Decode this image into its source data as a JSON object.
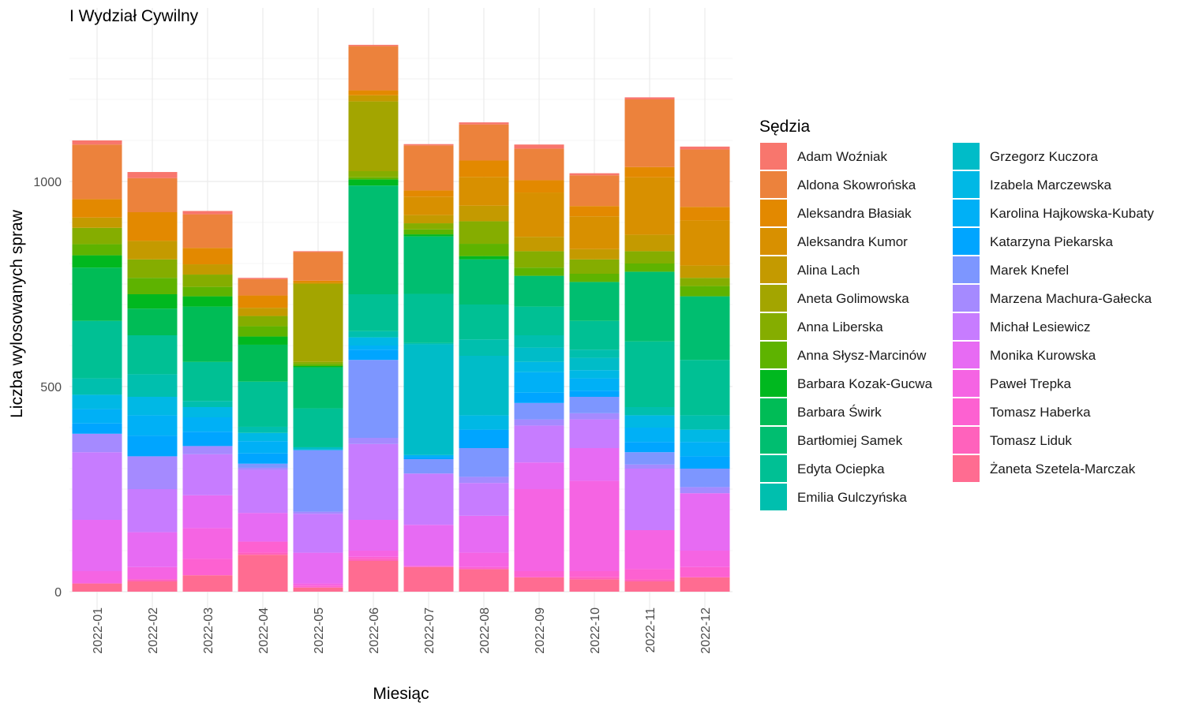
{
  "chart_data": {
    "type": "bar",
    "stacked": true,
    "title": "I Wydział Cywilny",
    "xlabel": "Miesiąc",
    "ylabel": "Liczba wylosowanych spraw",
    "ylim": [
      0,
      1350
    ],
    "yticks": [
      0,
      500,
      1000
    ],
    "grid": true,
    "legend": {
      "title": "Sędzia",
      "position": "right",
      "columns": 2
    },
    "categories": [
      "2022-01",
      "2022-02",
      "2022-03",
      "2022-04",
      "2022-05",
      "2022-06",
      "2022-07",
      "2022-08",
      "2022-09",
      "2022-10",
      "2022-11",
      "2022-12"
    ],
    "series": [
      {
        "name": "Adam Woźniak",
        "color": "#F8766D",
        "values": [
          10,
          15,
          8,
          3,
          2,
          3,
          3,
          5,
          10,
          5,
          5,
          7
        ]
      },
      {
        "name": "Aldona Skowrońska",
        "color": "#EC823C",
        "values": [
          133,
          83,
          82,
          40,
          70,
          108,
          110,
          88,
          77,
          75,
          165,
          140
        ]
      },
      {
        "name": "Aleksandra Błasiak",
        "color": "#E38900",
        "values": [
          45,
          70,
          40,
          30,
          5,
          12,
          15,
          40,
          30,
          25,
          25,
          33
        ]
      },
      {
        "name": "Aleksandra Kumor",
        "color": "#D89000",
        "values": [
          0,
          0,
          0,
          0,
          0,
          0,
          45,
          70,
          108,
          80,
          140,
          110
        ]
      },
      {
        "name": "Alina Lach",
        "color": "#C49A00",
        "values": [
          25,
          45,
          25,
          20,
          3,
          15,
          20,
          38,
          35,
          25,
          40,
          30
        ]
      },
      {
        "name": "Aneta Golimowska",
        "color": "#A3A500",
        "values": [
          0,
          0,
          0,
          0,
          190,
          170,
          0,
          0,
          0,
          0,
          0,
          0
        ]
      },
      {
        "name": "Anna Liberska",
        "color": "#85AD00",
        "values": [
          40,
          45,
          30,
          25,
          5,
          15,
          15,
          55,
          40,
          35,
          30,
          20
        ]
      },
      {
        "name": "Anna Słysz-Marcinów",
        "color": "#5EB300",
        "values": [
          27,
          40,
          23,
          25,
          5,
          5,
          12,
          30,
          20,
          20,
          20,
          25
        ]
      },
      {
        "name": "Barbara Kozak-Gucwa",
        "color": "#00B81F",
        "values": [
          30,
          35,
          25,
          20,
          3,
          15,
          5,
          8,
          0,
          0,
          0,
          0
        ]
      },
      {
        "name": "Barbara Świrk",
        "color": "#00BC56",
        "values": [
          130,
          65,
          135,
          90,
          0,
          0,
          0,
          0,
          0,
          0,
          0,
          0
        ]
      },
      {
        "name": "Bartłomiej Samek",
        "color": "#00BE70",
        "values": [
          0,
          0,
          0,
          0,
          100,
          265,
          140,
          110,
          75,
          95,
          170,
          155
        ]
      },
      {
        "name": "Edyta Ociepka",
        "color": "#00C094",
        "values": [
          140,
          95,
          95,
          110,
          95,
          90,
          120,
          85,
          70,
          70,
          160,
          135
        ]
      },
      {
        "name": "Emilia Gulczyńska",
        "color": "#00BFAE",
        "values": [
          40,
          55,
          15,
          15,
          0,
          15,
          3,
          40,
          30,
          20,
          20,
          35
        ]
      },
      {
        "name": "Grzegorz Kuczora",
        "color": "#00BCC8",
        "values": [
          0,
          0,
          0,
          0,
          5,
          0,
          270,
          145,
          35,
          30,
          0,
          0
        ]
      },
      {
        "name": "Izabela Marczewska",
        "color": "#00B8E5",
        "values": [
          35,
          45,
          25,
          20,
          2,
          20,
          0,
          35,
          25,
          20,
          30,
          30
        ]
      },
      {
        "name": "Karolina Hajkowska-Kubaty",
        "color": "#00B0F6",
        "values": [
          35,
          50,
          35,
          30,
          0,
          10,
          5,
          0,
          50,
          30,
          35,
          35
        ]
      },
      {
        "name": "Katarzyna Piekarska",
        "color": "#00A5FF",
        "values": [
          25,
          50,
          35,
          25,
          0,
          25,
          5,
          45,
          25,
          15,
          25,
          30
        ]
      },
      {
        "name": "Marek Knefel",
        "color": "#7D96FF",
        "values": [
          0,
          0,
          0,
          10,
          150,
          190,
          35,
          70,
          40,
          40,
          30,
          45
        ]
      },
      {
        "name": "Marzena Machura-Gałecka",
        "color": "#A58AFF",
        "values": [
          45,
          80,
          20,
          5,
          5,
          15,
          0,
          15,
          15,
          15,
          10,
          15
        ]
      },
      {
        "name": "Michał Lesiewicz",
        "color": "#C77CFF",
        "values": [
          165,
          105,
          100,
          105,
          95,
          185,
          125,
          80,
          90,
          70,
          150,
          0
        ]
      },
      {
        "name": "Monika Kurowska",
        "color": "#E76BF3",
        "values": [
          125,
          85,
          80,
          70,
          75,
          75,
          100,
          90,
          65,
          80,
          0,
          140
        ]
      },
      {
        "name": "Paweł Trepka",
        "color": "#F564E3",
        "values": [
          30,
          30,
          75,
          0,
          5,
          15,
          0,
          35,
          200,
          220,
          95,
          40
        ]
      },
      {
        "name": "Tomasz Haberka",
        "color": "#FD61D1",
        "values": [
          0,
          0,
          40,
          27,
          5,
          5,
          3,
          5,
          15,
          15,
          25,
          25
        ]
      },
      {
        "name": "Tomasz Liduk",
        "color": "#FF62BC",
        "values": [
          0,
          5,
          0,
          5,
          0,
          5,
          0,
          0,
          0,
          5,
          5,
          0
        ]
      },
      {
        "name": "Żaneta Szetela-Marczak",
        "color": "#FF6C91",
        "values": [
          20,
          25,
          40,
          90,
          10,
          75,
          60,
          55,
          35,
          30,
          25,
          35
        ]
      }
    ]
  }
}
